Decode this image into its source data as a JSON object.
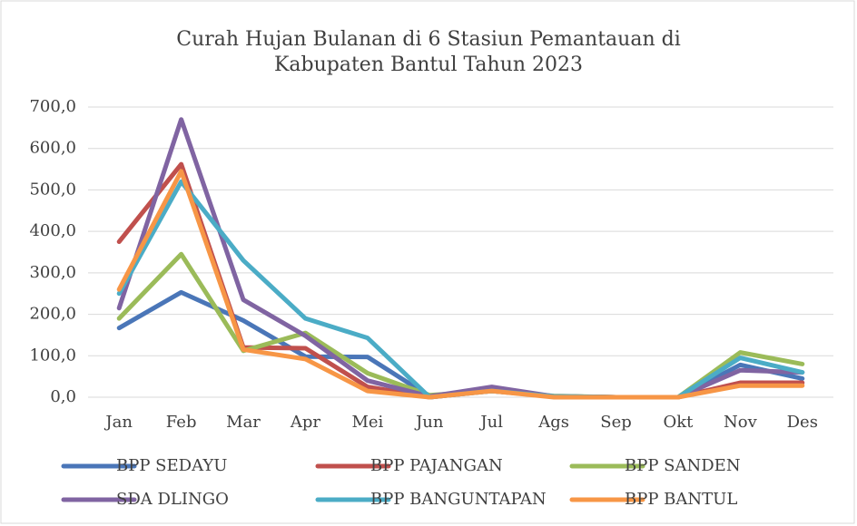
{
  "chart_data": {
    "type": "line",
    "title": [
      "Curah Hujan Bulanan di 6 Stasiun Pemantauan di",
      "Kabupaten Bantul Tahun 2023"
    ],
    "categories": [
      "Jan",
      "Feb",
      "Mar",
      "Apr",
      "Mei",
      "Jun",
      "Jul",
      "Ags",
      "Sep",
      "Okt",
      "Nov",
      "Des"
    ],
    "series": [
      {
        "name": "BPP SEDAYU",
        "color": "#4a76b8",
        "values": [
          167,
          253,
          185,
          98,
          97,
          2,
          15,
          2,
          0,
          0,
          78,
          45
        ]
      },
      {
        "name": "BPP PAJANGAN",
        "color": "#c0504d",
        "values": [
          375,
          562,
          120,
          118,
          25,
          0,
          15,
          2,
          0,
          0,
          35,
          35
        ]
      },
      {
        "name": "BPP SANDEN",
        "color": "#9bbb59",
        "values": [
          190,
          345,
          112,
          155,
          58,
          5,
          15,
          3,
          0,
          0,
          108,
          80
        ]
      },
      {
        "name": "SDA DLINGO",
        "color": "#8064a2",
        "values": [
          215,
          670,
          235,
          148,
          40,
          2,
          25,
          2,
          0,
          0,
          65,
          60
        ]
      },
      {
        "name": "BPP BANGUNTAPAN",
        "color": "#4bacc6",
        "values": [
          250,
          520,
          330,
          190,
          143,
          0,
          15,
          2,
          0,
          0,
          95,
          60
        ]
      },
      {
        "name": "BPP BANTUL",
        "color": "#f79646",
        "values": [
          260,
          545,
          115,
          92,
          15,
          0,
          15,
          0,
          0,
          0,
          28,
          28
        ]
      }
    ],
    "ylim": [
      0,
      700
    ],
    "yticks": [
      {
        "value": 0,
        "label": "0,0"
      },
      {
        "value": 100,
        "label": "100,0"
      },
      {
        "value": 200,
        "label": "200,0"
      },
      {
        "value": 300,
        "label": "300,0"
      },
      {
        "value": 400,
        "label": "400,0"
      },
      {
        "value": 500,
        "label": "500,0"
      },
      {
        "value": 600,
        "label": "600,0"
      },
      {
        "value": 700,
        "label": "700,0"
      }
    ],
    "grid": true,
    "legend": "bottom"
  }
}
